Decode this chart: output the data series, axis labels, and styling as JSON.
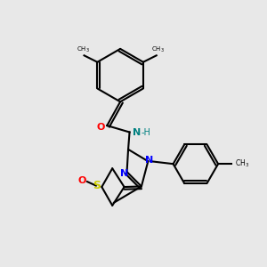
{
  "background_color": "#e8e8e8",
  "bond_color": "#000000",
  "atom_colors": {
    "O": "#ff0000",
    "N": "#0000ff",
    "S": "#cccc00",
    "NH": "#008080",
    "C": "#000000"
  },
  "figsize": [
    3.0,
    3.0
  ],
  "dpi": 100
}
